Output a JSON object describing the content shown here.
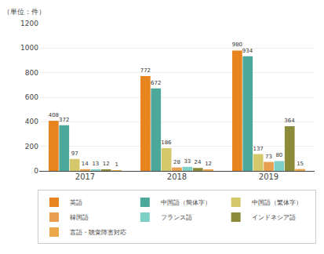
{
  "chart_data": {
    "type": "bar",
    "ylabel": "（単位：件）",
    "categories": [
      "2017",
      "2018",
      "2019"
    ],
    "series": [
      {
        "name": "英語",
        "color": "#E8841E",
        "values": [
          408,
          772,
          980
        ]
      },
      {
        "name": "中国語（簡体字）",
        "color": "#4BA89A",
        "values": [
          372,
          672,
          934
        ]
      },
      {
        "name": "中国語（繁体字）",
        "color": "#D4C86A",
        "values": [
          97,
          186,
          137
        ]
      },
      {
        "name": "韓国語",
        "color": "#E8A050",
        "values": [
          14,
          28,
          73
        ]
      },
      {
        "name": "フランス語",
        "color": "#7ECFC6",
        "values": [
          13,
          33,
          80
        ]
      },
      {
        "name": "インドネシア語",
        "color": "#8B8B3A",
        "values": [
          12,
          24,
          364
        ]
      },
      {
        "name": "言語・聴覚障害対応",
        "color": "#EBA84A",
        "values": [
          1,
          12,
          15
        ]
      }
    ],
    "ylim": [
      0,
      1200
    ],
    "yticks": [
      0,
      200,
      400,
      600,
      800,
      1000,
      1200
    ],
    "grid": true,
    "data_labels": true,
    "legend": "bottom"
  }
}
